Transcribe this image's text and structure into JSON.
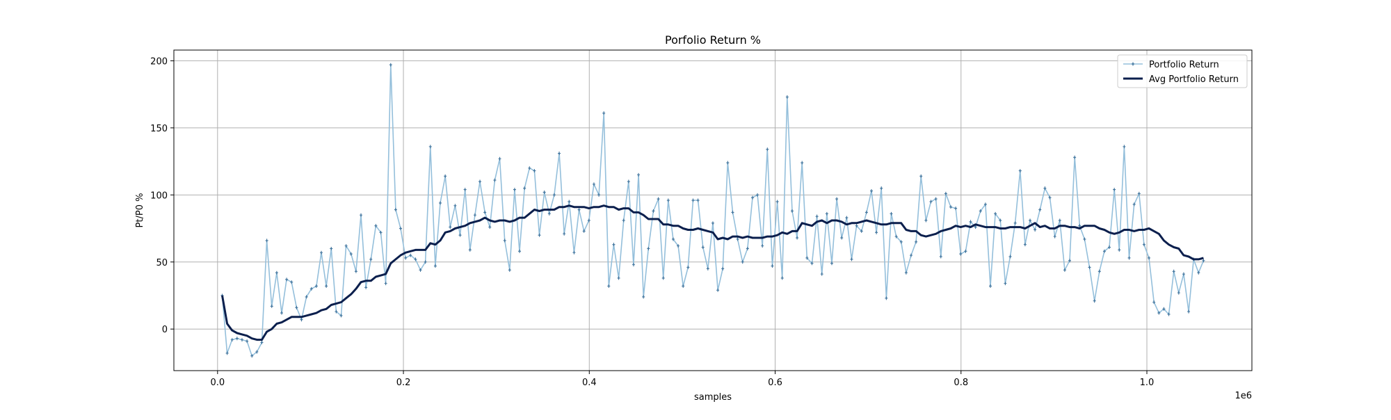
{
  "chart_data": {
    "type": "line",
    "title": "Porfolio Return %",
    "xlabel": "samples",
    "ylabel": "Pt/P0 %",
    "x_offset_label": "1e6",
    "xlim": [
      -0.047,
      1.113
    ],
    "ylim": [
      -31,
      208
    ],
    "xticks": [
      0.0,
      0.2,
      0.4,
      0.6,
      0.8,
      1.0
    ],
    "xtick_labels": [
      "0.0",
      "0.2",
      "0.4",
      "0.6",
      "0.8",
      "1.0"
    ],
    "yticks": [
      0,
      50,
      100,
      150,
      200
    ],
    "ytick_labels": [
      "0",
      "50",
      "100",
      "150",
      "200"
    ],
    "grid": true,
    "legend_position": "top-right",
    "x_start": 0.005,
    "x_step": 0.005333,
    "series": [
      {
        "name": "Portfolio Return",
        "color": "#94bfdb",
        "marker": "+",
        "values": [
          25,
          -18,
          -8,
          -7,
          -8,
          -9,
          -20,
          -17,
          -10,
          66,
          17,
          42,
          12,
          37,
          35,
          16,
          7,
          24,
          30,
          32,
          57,
          32,
          60,
          13,
          10,
          62,
          56,
          43,
          85,
          31,
          52,
          77,
          72,
          34,
          197,
          89,
          75,
          53,
          55,
          52,
          44,
          50,
          136,
          47,
          94,
          114,
          76,
          92,
          70,
          104,
          59,
          85,
          110,
          87,
          76,
          111,
          127,
          66,
          44,
          104,
          58,
          105,
          120,
          118,
          70,
          102,
          86,
          100,
          131,
          71,
          95,
          57,
          89,
          73,
          81,
          108,
          100,
          161,
          32,
          63,
          38,
          81,
          110,
          48,
          115,
          24,
          60,
          88,
          97,
          38,
          96,
          67,
          62,
          32,
          46,
          96,
          96,
          61,
          45,
          79,
          29,
          45,
          124,
          87,
          67,
          50,
          60,
          98,
          100,
          62,
          134,
          47,
          95,
          38,
          173,
          88,
          68,
          124,
          53,
          49,
          84,
          41,
          86,
          49,
          97,
          68,
          83,
          52,
          77,
          73,
          87,
          103,
          72,
          105,
          23,
          86,
          69,
          65,
          42,
          55,
          65,
          114,
          81,
          95,
          97,
          54,
          101,
          91,
          90,
          56,
          58,
          80,
          76,
          88,
          93,
          32,
          86,
          81,
          34,
          54,
          79,
          118,
          63,
          81,
          74,
          89,
          105,
          98,
          69,
          81,
          44,
          51,
          128,
          77,
          67,
          46,
          21,
          43,
          58,
          61,
          104,
          59,
          136,
          53,
          93,
          101,
          63,
          53,
          20,
          12,
          15,
          11,
          43,
          27,
          41,
          13,
          52,
          42,
          51
        ]
      },
      {
        "name": "Avg Portfolio Return",
        "color": "#0b1f4d",
        "values": [
          25,
          4,
          -1,
          -3,
          -4,
          -5,
          -7,
          -8,
          -8,
          -2,
          0,
          4,
          5,
          7,
          9,
          9,
          9,
          10,
          11,
          12,
          14,
          15,
          18,
          19,
          20,
          23,
          26,
          30,
          35,
          36,
          36,
          39,
          40,
          41,
          49,
          52,
          55,
          57,
          58,
          59,
          59,
          59,
          64,
          63,
          66,
          72,
          73,
          75,
          76,
          77,
          79,
          80,
          81,
          83,
          81,
          80,
          81,
          81,
          80,
          81,
          83,
          83,
          86,
          89,
          88,
          89,
          89,
          89,
          91,
          91,
          92,
          91,
          91,
          91,
          90,
          91,
          91,
          92,
          91,
          91,
          89,
          90,
          90,
          87,
          87,
          85,
          82,
          82,
          82,
          78,
          78,
          77,
          77,
          75,
          74,
          74,
          75,
          74,
          73,
          72,
          67,
          68,
          67,
          69,
          69,
          68,
          69,
          68,
          68,
          68,
          69,
          69,
          70,
          72,
          71,
          73,
          73,
          79,
          78,
          77,
          80,
          81,
          79,
          81,
          81,
          80,
          78,
          79,
          79,
          80,
          81,
          80,
          79,
          78,
          78,
          79,
          79,
          79,
          74,
          73,
          73,
          70,
          69,
          70,
          71,
          73,
          74,
          75,
          77,
          76,
          77,
          76,
          78,
          77,
          76,
          76,
          76,
          75,
          75,
          76,
          76,
          76,
          75,
          77,
          79,
          76,
          77,
          75,
          75,
          77,
          77,
          76,
          76,
          75,
          77,
          77,
          77,
          75,
          74,
          72,
          71,
          72,
          74,
          74,
          73,
          74,
          74,
          75,
          73,
          71,
          66,
          63,
          61,
          60,
          55,
          54,
          52,
          52,
          53
        ]
      }
    ]
  }
}
